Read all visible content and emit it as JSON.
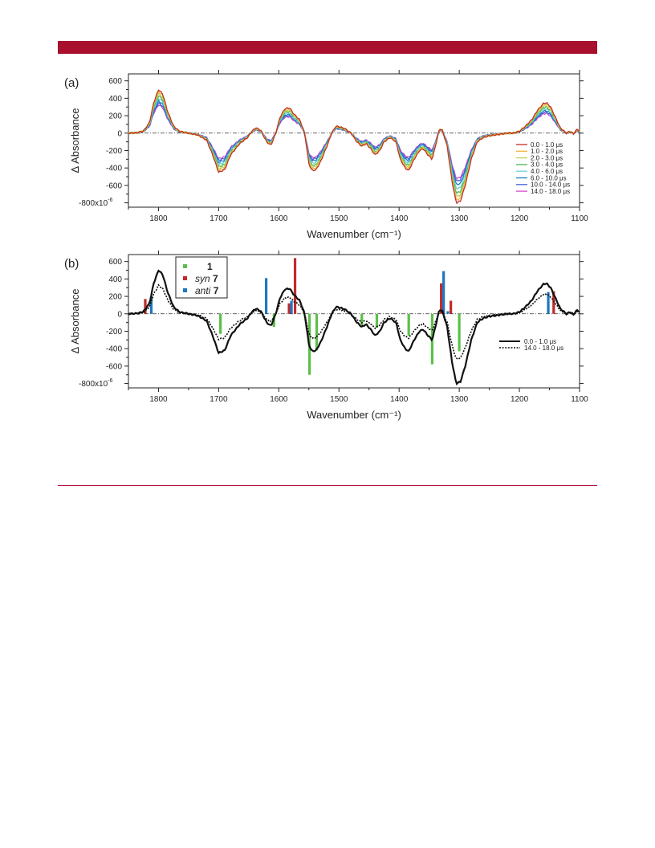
{
  "colors": {
    "header_bar": "#a8102e",
    "rule": "#b3123a"
  },
  "chart_data": [
    {
      "panel_label": "(a)",
      "type": "line",
      "xlabel": "Wavenumber (cm⁻¹)",
      "ylabel": "Δ Absorbance",
      "xlim": [
        1850,
        1100
      ],
      "ylim": [
        -850,
        680
      ],
      "xticks": [
        1800,
        1700,
        1600,
        1500,
        1400,
        1300,
        1200,
        1100
      ],
      "ytick_labels": [
        {
          "v": 600,
          "t": "600"
        },
        {
          "v": 400,
          "t": "400"
        },
        {
          "v": 200,
          "t": "200"
        },
        {
          "v": 0,
          "t": "0"
        },
        {
          "v": -200,
          "t": "-200"
        },
        {
          "v": -400,
          "t": "-400"
        },
        {
          "v": -600,
          "t": "-600"
        },
        {
          "v": -800,
          "t": "-800x10",
          "sup": "-6"
        }
      ],
      "legend_position": "bottom-right",
      "base_profile": [
        [
          1850,
          0
        ],
        [
          1835,
          5
        ],
        [
          1825,
          25
        ],
        [
          1815,
          120
        ],
        [
          1808,
          350
        ],
        [
          1800,
          500
        ],
        [
          1793,
          450
        ],
        [
          1785,
          250
        ],
        [
          1775,
          80
        ],
        [
          1765,
          20
        ],
        [
          1750,
          0
        ],
        [
          1735,
          -20
        ],
        [
          1720,
          -80
        ],
        [
          1710,
          -250
        ],
        [
          1700,
          -450
        ],
        [
          1690,
          -420
        ],
        [
          1680,
          -250
        ],
        [
          1665,
          -120
        ],
        [
          1652,
          -50
        ],
        [
          1645,
          20
        ],
        [
          1638,
          60
        ],
        [
          1630,
          30
        ],
        [
          1620,
          -100
        ],
        [
          1613,
          -140
        ],
        [
          1605,
          0
        ],
        [
          1598,
          180
        ],
        [
          1590,
          280
        ],
        [
          1582,
          290
        ],
        [
          1575,
          220
        ],
        [
          1565,
          150
        ],
        [
          1557,
          0
        ],
        [
          1550,
          -350
        ],
        [
          1545,
          -430
        ],
        [
          1538,
          -420
        ],
        [
          1530,
          -320
        ],
        [
          1520,
          -150
        ],
        [
          1512,
          0
        ],
        [
          1505,
          80
        ],
        [
          1498,
          70
        ],
        [
          1490,
          50
        ],
        [
          1480,
          0
        ],
        [
          1470,
          -100
        ],
        [
          1462,
          -150
        ],
        [
          1455,
          -120
        ],
        [
          1447,
          -180
        ],
        [
          1440,
          -250
        ],
        [
          1432,
          -200
        ],
        [
          1425,
          -100
        ],
        [
          1415,
          -50
        ],
        [
          1405,
          -100
        ],
        [
          1398,
          -300
        ],
        [
          1390,
          -400
        ],
        [
          1384,
          -430
        ],
        [
          1375,
          -300
        ],
        [
          1366,
          -200
        ],
        [
          1360,
          -180
        ],
        [
          1352,
          -250
        ],
        [
          1345,
          -300
        ],
        [
          1338,
          -100
        ],
        [
          1333,
          50
        ],
        [
          1328,
          30
        ],
        [
          1320,
          -150
        ],
        [
          1312,
          -550
        ],
        [
          1305,
          -800
        ],
        [
          1298,
          -780
        ],
        [
          1290,
          -600
        ],
        [
          1280,
          -300
        ],
        [
          1270,
          -100
        ],
        [
          1260,
          -50
        ],
        [
          1250,
          -30
        ],
        [
          1240,
          -20
        ],
        [
          1230,
          -10
        ],
        [
          1220,
          0
        ],
        [
          1210,
          0
        ],
        [
          1200,
          20
        ],
        [
          1190,
          80
        ],
        [
          1180,
          150
        ],
        [
          1170,
          260
        ],
        [
          1160,
          340
        ],
        [
          1155,
          350
        ],
        [
          1148,
          300
        ],
        [
          1140,
          180
        ],
        [
          1132,
          60
        ],
        [
          1122,
          0
        ],
        [
          1115,
          20
        ],
        [
          1110,
          -10
        ],
        [
          1105,
          40
        ],
        [
          1100,
          30
        ]
      ],
      "series": [
        {
          "name": "0.0 - 1.0  μs",
          "color": "#c0302a",
          "scale": 1.0
        },
        {
          "name": "1.0 - 2.0  μs",
          "color": "#f0b43a",
          "scale": 0.96
        },
        {
          "name": "2.0 - 3.0  μs",
          "color": "#b7d354",
          "scale": 0.91
        },
        {
          "name": "3.0 - 4.0  μs",
          "color": "#52b552",
          "scale": 0.86
        },
        {
          "name": "4.0 - 6.0  μs",
          "color": "#6ed0d6",
          "scale": 0.8
        },
        {
          "name": "6.0 - 10.0  μs",
          "color": "#1c7dbf",
          "scale": 0.74
        },
        {
          "name": "10.0 - 14.0  μs",
          "color": "#4560d6",
          "scale": 0.69
        },
        {
          "name": "14.0 - 18.0  μs",
          "color": "#d54bd0",
          "scale": 0.65
        }
      ]
    },
    {
      "panel_label": "(b)",
      "type": "line",
      "xlabel": "Wavenumber (cm⁻¹)",
      "ylabel": "Δ Absorbance",
      "xlim": [
        1850,
        1100
      ],
      "ylim": [
        -850,
        680
      ],
      "xticks": [
        1800,
        1700,
        1600,
        1500,
        1400,
        1300,
        1200,
        1100
      ],
      "ytick_labels": [
        {
          "v": 600,
          "t": "600"
        },
        {
          "v": 400,
          "t": "400"
        },
        {
          "v": 200,
          "t": "200"
        },
        {
          "v": 0,
          "t": "0"
        },
        {
          "v": -200,
          "t": "-200"
        },
        {
          "v": -400,
          "t": "-400"
        },
        {
          "v": -600,
          "t": "-600"
        },
        {
          "v": -800,
          "t": "-800x10",
          "sup": "-6"
        }
      ],
      "legend_position": "top-left",
      "series": [
        {
          "name": "0.0 - 1.0  μs",
          "style": "solid",
          "scale": 1.0
        },
        {
          "name": "14.0 - 18.0  μs",
          "style": "dotted",
          "scale": 0.65
        }
      ],
      "stick_series": [
        {
          "label_pre": "",
          "label_bold": "1",
          "italic": false,
          "color": "#5dbf49",
          "sticks": [
            [
              1697,
              -230
            ],
            [
              1608,
              -150
            ],
            [
              1549,
              -700
            ],
            [
              1537,
              -420
            ],
            [
              1462,
              -140
            ],
            [
              1437,
              -160
            ],
            [
              1384,
              -250
            ],
            [
              1345,
              -580
            ],
            [
              1300,
              -430
            ]
          ]
        },
        {
          "label_pre": "syn",
          "label_bold": "7",
          "italic": true,
          "color": "#c12a2a",
          "sticks": [
            [
              1822,
              170
            ],
            [
              1583,
              120
            ],
            [
              1573,
              640
            ],
            [
              1330,
              350
            ],
            [
              1314,
              150
            ],
            [
              1143,
              260
            ]
          ]
        },
        {
          "label_pre": "anti",
          "label_bold": "7",
          "italic": true,
          "color": "#1f76c2",
          "sticks": [
            [
              1812,
              200
            ],
            [
              1621,
              410
            ],
            [
              1579,
              150
            ],
            [
              1326,
              490
            ],
            [
              1319,
              30
            ],
            [
              1152,
              250
            ]
          ]
        }
      ]
    }
  ]
}
